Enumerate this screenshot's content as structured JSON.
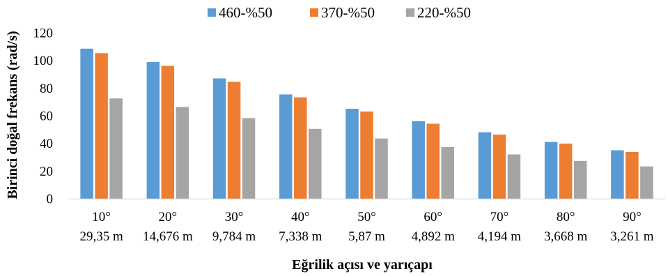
{
  "chart_data": {
    "type": "bar",
    "title": "",
    "xlabel": "Eğrilik açısı ve yarıçapı",
    "ylabel": "Birinci doğal frekans (rad/s)",
    "ylim": [
      0,
      120
    ],
    "yticks": [
      "0",
      "20",
      "40",
      "60",
      "80",
      "100",
      "120"
    ],
    "grid": false,
    "legend_position": "top",
    "categories": [
      [
        "10°",
        "29,35 m"
      ],
      [
        "20°",
        "14,676 m"
      ],
      [
        "30°",
        "9,784 m"
      ],
      [
        "40°",
        "7,338 m"
      ],
      [
        "50°",
        "5,87 m"
      ],
      [
        "60°",
        "4,892 m"
      ],
      [
        "70°",
        "4,194 m"
      ],
      [
        "80°",
        "3,668 m"
      ],
      [
        "90°",
        "3,261 m"
      ]
    ],
    "series": [
      {
        "name": "460-%50",
        "color": "#5b9bd5",
        "values": [
          108.5,
          98.8,
          87.0,
          75.4,
          65.0,
          56.0,
          48.0,
          41.0,
          35.0
        ]
      },
      {
        "name": "370-%50",
        "color": "#ed7d31",
        "values": [
          105.2,
          96.0,
          84.5,
          73.3,
          63.0,
          54.2,
          46.3,
          39.8,
          33.8
        ]
      },
      {
        "name": "220-%50",
        "color": "#a5a5a5",
        "values": [
          72.5,
          66.3,
          58.3,
          50.5,
          43.5,
          37.3,
          32.0,
          27.3,
          23.3
        ]
      }
    ]
  }
}
